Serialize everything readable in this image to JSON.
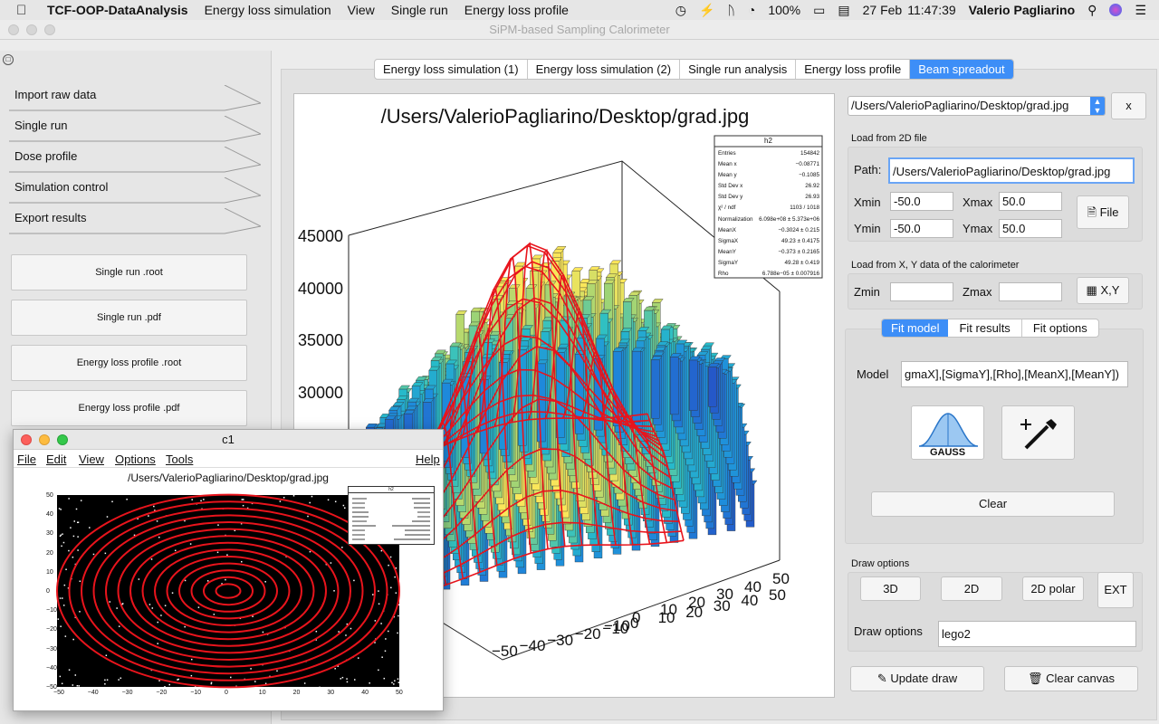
{
  "menubar": {
    "app_name": "TCF-OOP-DataAnalysis",
    "items": [
      "Energy loss simulation",
      "View",
      "Single run",
      "Energy loss profile"
    ],
    "battery": "100%",
    "date": "27 Feb",
    "time": "11:47:39",
    "user": "Valerio Pagliarino"
  },
  "window_title": "SiPM-based Sampling Calorimeter",
  "sidebar": {
    "nav_items": [
      "Import raw data",
      "Single run",
      "Dose profile",
      "Simulation control",
      "Export results"
    ],
    "export_buttons": [
      "Single run .root",
      "Single run .pdf",
      "Energy loss profile .root",
      "Energy loss profile .pdf"
    ]
  },
  "tabs": [
    "Energy loss simulation (1)",
    "Energy loss simulation (2)",
    "Single run analysis",
    "Energy loss profile",
    "Beam spreadout"
  ],
  "active_tab": 4,
  "canvas": {
    "title": "/Users/ValerioPagliarino/Desktop/grad.jpg",
    "stats": {
      "name": "h2",
      "rows": [
        [
          "Entries",
          "154842"
        ],
        [
          "Mean x",
          "−0.08771"
        ],
        [
          "Mean y",
          "−0.1085"
        ],
        [
          "Std Dev x",
          "26.92"
        ],
        [
          "Std Dev y",
          "26.93"
        ],
        [
          "χ² / ndf",
          "1103 / 1018"
        ],
        [
          "Normalization",
          "6.098e+08 ± 5.373e+06"
        ],
        [
          "MeanX",
          "−0.3024 ± 0.215"
        ],
        [
          "SigmaX",
          "49.23 ± 0.4175"
        ],
        [
          "MeanY",
          "−0.373 ± 0.2165"
        ],
        [
          "SigmaY",
          "49.28 ± 0.419"
        ],
        [
          "Rho",
          "6.788e−05 ± 0.007916"
        ]
      ]
    },
    "z_ticks": [
      "45000",
      "40000",
      "35000",
      "30000"
    ],
    "x_ticks": [
      "−50",
      "−40",
      "−30",
      "−20",
      "−10",
      "0",
      "10",
      "20",
      "30",
      "40",
      "50"
    ],
    "y_ticks": [
      "50",
      "40",
      "30",
      "20",
      "10",
      "0",
      "−10",
      "−20",
      "−30",
      "−40",
      "−50"
    ]
  },
  "right_panel": {
    "file_select": "/Users/ValerioPagliarino/Desktop/grad.jpg",
    "close_label": "x",
    "load2d_header": "Load from 2D file",
    "path_label": "Path:",
    "path_value": "/Users/ValerioPagliarino/Desktop/grad.jpg",
    "xmin_label": "Xmin",
    "xmin_value": "-50.0",
    "xmax_label": "Xmax",
    "xmax_value": "50.0",
    "ymin_label": "Ymin",
    "ymin_value": "-50.0",
    "ymax_label": "Ymax",
    "ymax_value": "50.0",
    "file_button": "File",
    "loadxy_header": "Load from X, Y data of the calorimeter",
    "zmin_label": "Zmin",
    "zmin_value": "",
    "zmax_label": "Zmax",
    "zmax_value": "",
    "xy_button": "X,Y",
    "fit_tabs": [
      "Fit model",
      "Fit results",
      "Fit options"
    ],
    "model_label": "Model",
    "model_value": "gmaX],[SigmaY],[Rho],[MeanX],[MeanY])",
    "gauss_label": "GAUSS",
    "clear_button": "Clear",
    "draw_header": "Draw options",
    "draw_buttons": [
      "3D",
      "2D",
      "2D polar"
    ],
    "ext_button": "EXT",
    "draw_options_label": "Draw options",
    "draw_options_value": "lego2",
    "update_button": "Update draw",
    "clear_canvas_button": "Clear canvas"
  },
  "c1": {
    "title": "c1",
    "menu": [
      "File",
      "Edit",
      "View",
      "Options",
      "Tools"
    ],
    "help": "Help",
    "plot_title": "/Users/ValerioPagliarino/Desktop/grad.jpg",
    "x_ticks": [
      "−50",
      "−40",
      "−30",
      "−20",
      "−10",
      "0",
      "10",
      "20",
      "30",
      "40",
      "50"
    ],
    "y_ticks": [
      "50",
      "40",
      "30",
      "20",
      "10",
      "0",
      "−10",
      "−20",
      "−30",
      "−40",
      "−50"
    ],
    "stats_name": "h2"
  },
  "colors": {
    "accent": "#3d8ef7",
    "fit_line": "#e8141c"
  }
}
